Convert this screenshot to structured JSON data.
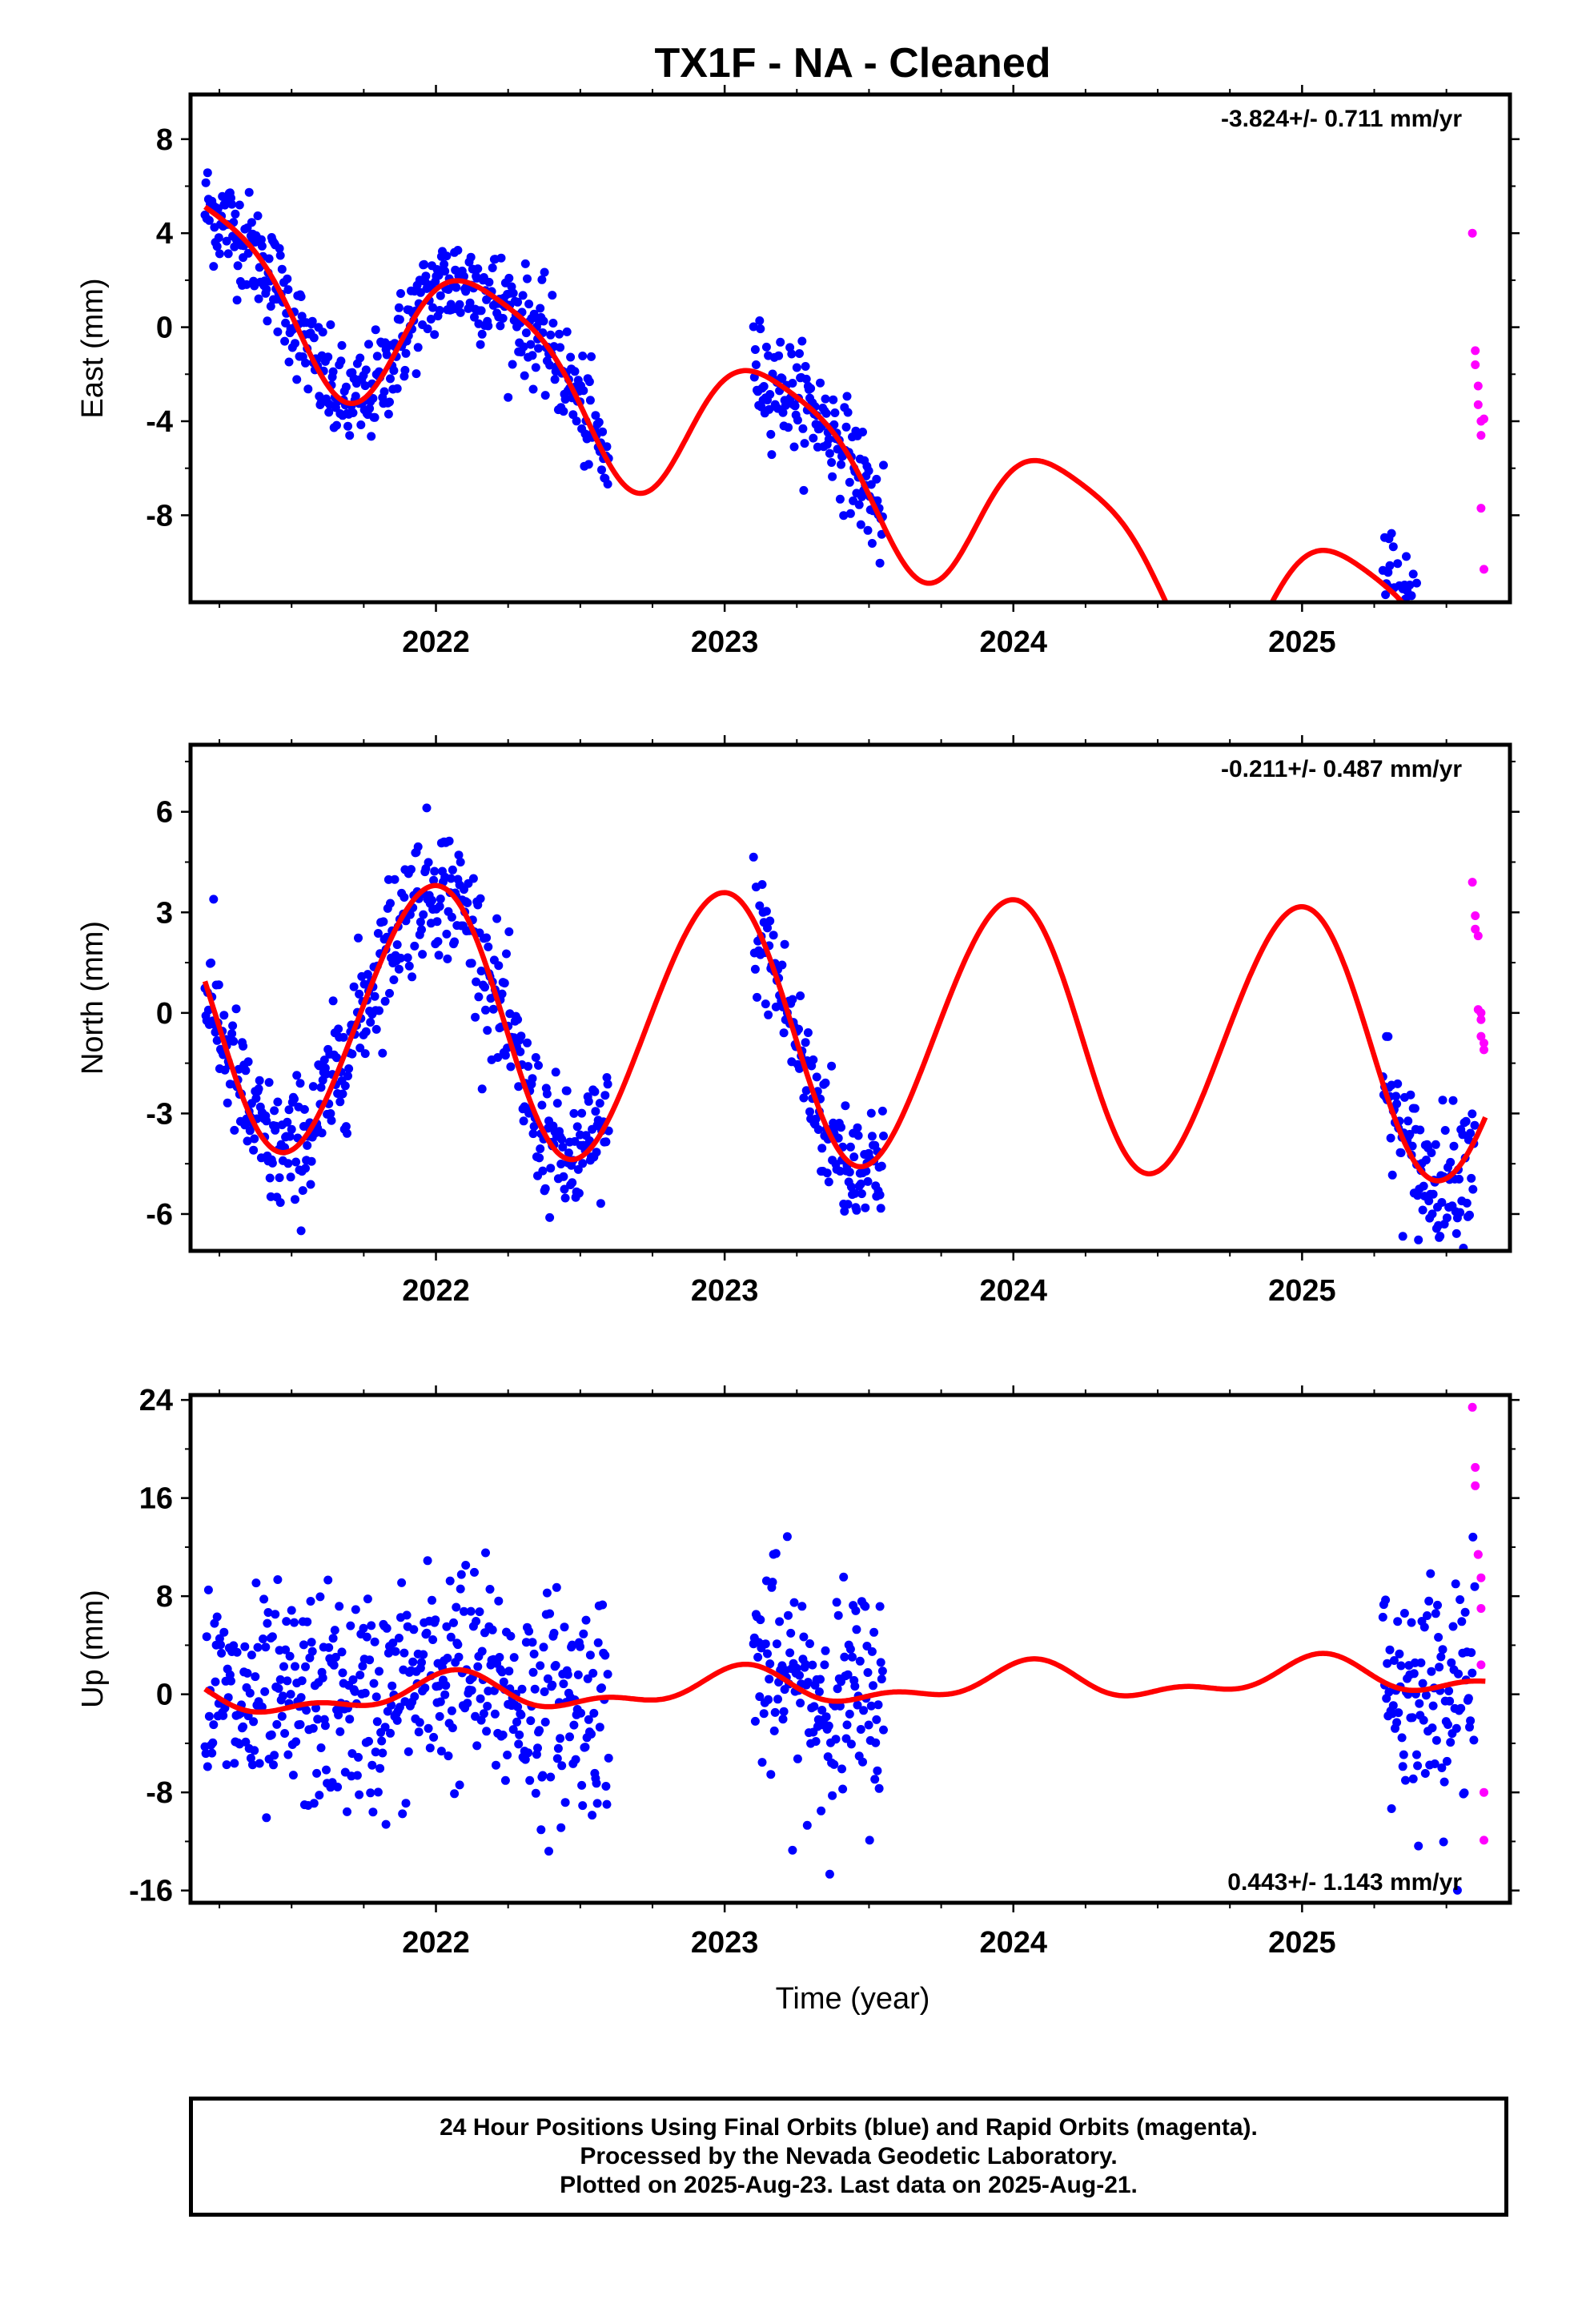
{
  "title": "TX1F  - NA - Cleaned",
  "x_axis_label": "Time (year)",
  "footer": {
    "line1": "24 Hour Positions Using Final Orbits (blue) and Rapid Orbits (magenta).",
    "line2": "Processed by the Nevada Geodetic Laboratory.",
    "line3": "Plotted on 2025-Aug-23. Last data on 2025-Aug-21."
  },
  "colors": {
    "final": "#0000ff",
    "rapid": "#ff00ff",
    "model": "#ff0000"
  },
  "chart_data": [
    {
      "type": "scatter",
      "panel": "east",
      "ylabel": "East (mm)",
      "rate_label": "-3.824+/- 0.711 mm/yr",
      "rate_position": "top-right",
      "xlim": [
        2021.15,
        2025.72
      ],
      "ylim": [
        -11.7,
        9.9
      ],
      "x_ticks": [
        2022,
        2023,
        2024,
        2025
      ],
      "x_tick_labels": [
        "2022",
        "2023",
        "2024",
        "2025"
      ],
      "y_ticks": [
        -8,
        -4,
        0,
        4,
        8
      ],
      "y_tick_labels": [
        "-8",
        "-4",
        "0",
        "4",
        "8"
      ],
      "model_rate": -3.824,
      "model_ref": -0.5,
      "model_amp": [
        2.9,
        1.5,
        -0.3,
        0.6
      ],
      "segments": [
        [
          2021.2,
          2022.6
        ],
        [
          2023.1,
          2023.55
        ],
        [
          2025.28,
          2025.6
        ]
      ],
      "spread": 1.1,
      "rapid": {
        "x": [
          2025.59,
          2025.6,
          2025.6,
          2025.61,
          2025.61,
          2025.62,
          2025.62,
          2025.62,
          2025.63,
          2025.63
        ],
        "y": [
          4.0,
          -1.0,
          -1.6,
          -2.5,
          -3.3,
          -4.0,
          -4.6,
          -7.7,
          -10.3,
          -3.9
        ]
      }
    },
    {
      "type": "scatter",
      "panel": "north",
      "ylabel": "North (mm)",
      "rate_label": "-0.211+/- 0.487 mm/yr",
      "rate_position": "top-right",
      "xlim": [
        2021.15,
        2025.72
      ],
      "ylim": [
        -7.1,
        8.0
      ],
      "x_ticks": [
        2022,
        2023,
        2024,
        2025
      ],
      "x_tick_labels": [
        "2022",
        "2023",
        "2024",
        "2025"
      ],
      "y_ticks": [
        -6,
        -3,
        0,
        3,
        6
      ],
      "y_tick_labels": [
        "-6",
        "-3",
        "0",
        "3",
        "6"
      ],
      "model_rate": -0.211,
      "model_ref": -0.2,
      "model_amp": [
        -0.4,
        4.0,
        0.2,
        0.0
      ],
      "segments": [
        [
          2021.2,
          2022.6
        ],
        [
          2023.1,
          2023.55
        ],
        [
          2025.28,
          2025.6
        ]
      ],
      "spread": 1.0,
      "rapid": {
        "x": [
          2025.59,
          2025.6,
          2025.6,
          2025.61,
          2025.61,
          2025.62,
          2025.62,
          2025.62,
          2025.63,
          2025.63
        ],
        "y": [
          3.9,
          2.9,
          2.5,
          2.3,
          0.1,
          0.0,
          -0.2,
          -0.7,
          -0.9,
          -1.1
        ]
      }
    },
    {
      "type": "scatter",
      "panel": "up",
      "ylabel": "Up (mm)",
      "rate_label": "0.443+/- 1.143 mm/yr",
      "rate_position": "bottom-right",
      "xlim": [
        2021.15,
        2025.72
      ],
      "ylim": [
        -17.0,
        24.4
      ],
      "x_ticks": [
        2022,
        2023,
        2024,
        2025
      ],
      "x_tick_labels": [
        "2022",
        "2023",
        "2024",
        "2025"
      ],
      "y_ticks": [
        -16,
        -8,
        0,
        8,
        16,
        24
      ],
      "y_tick_labels": [
        "-16",
        "-8",
        "0",
        "8",
        "16",
        "24"
      ],
      "model_rate": 0.443,
      "model_ref": 0.0,
      "model_amp": [
        0.4,
        1.2,
        0.6,
        0.4
      ],
      "segments": [
        [
          2021.2,
          2022.6
        ],
        [
          2023.1,
          2023.55
        ],
        [
          2025.28,
          2025.6
        ]
      ],
      "spread": 4.5,
      "rapid": {
        "x": [
          2025.59,
          2025.6,
          2025.6,
          2025.61,
          2025.61,
          2025.62,
          2025.62,
          2025.62,
          2025.63,
          2025.63
        ],
        "y": [
          23.4,
          18.5,
          17.0,
          11.4,
          11.4,
          9.5,
          7.0,
          2.4,
          -8.0,
          -11.9
        ]
      }
    }
  ]
}
